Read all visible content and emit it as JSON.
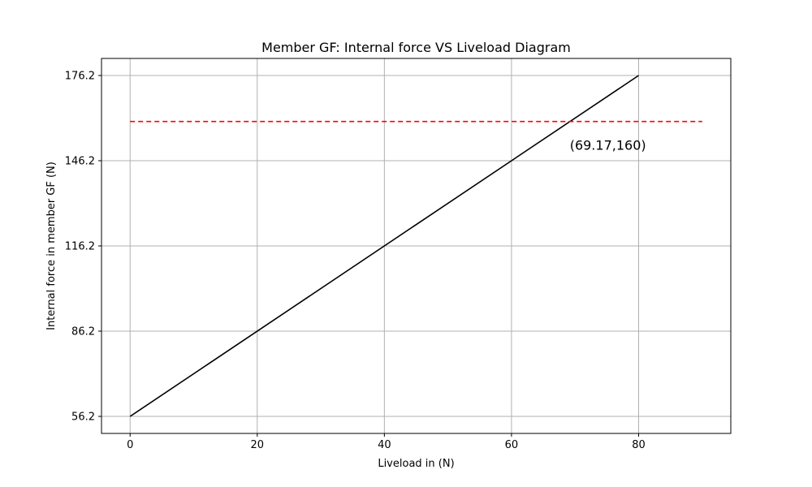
{
  "chart_data": {
    "type": "line",
    "title": "Member GF: Internal force VS Liveload Diagram",
    "xlabel": "Liveload in (N)",
    "ylabel": "Internal force in member GF (N)",
    "xlim": [
      -4.5,
      94.5
    ],
    "ylim": [
      50.2,
      182.2
    ],
    "x_ticks": [
      0,
      20,
      40,
      60,
      80
    ],
    "y_ticks": [
      56.2,
      86.2,
      116.2,
      146.2,
      176.2
    ],
    "x_tick_labels": [
      "0",
      "20",
      "40",
      "60",
      "80"
    ],
    "y_tick_labels": [
      "56.2",
      "86.2",
      "116.2",
      "146.2",
      "176.2"
    ],
    "grid": true,
    "series": [
      {
        "style": "solid",
        "color": "#000000",
        "x": [
          0,
          80
        ],
        "y": [
          56.2,
          176.2
        ]
      },
      {
        "style": "dashed",
        "color": "#ff0000",
        "x": [
          0,
          90
        ],
        "y": [
          160,
          160
        ]
      }
    ],
    "annotations": [
      {
        "text": "(69.17,160)",
        "x": 69.17,
        "y": 160
      }
    ]
  }
}
